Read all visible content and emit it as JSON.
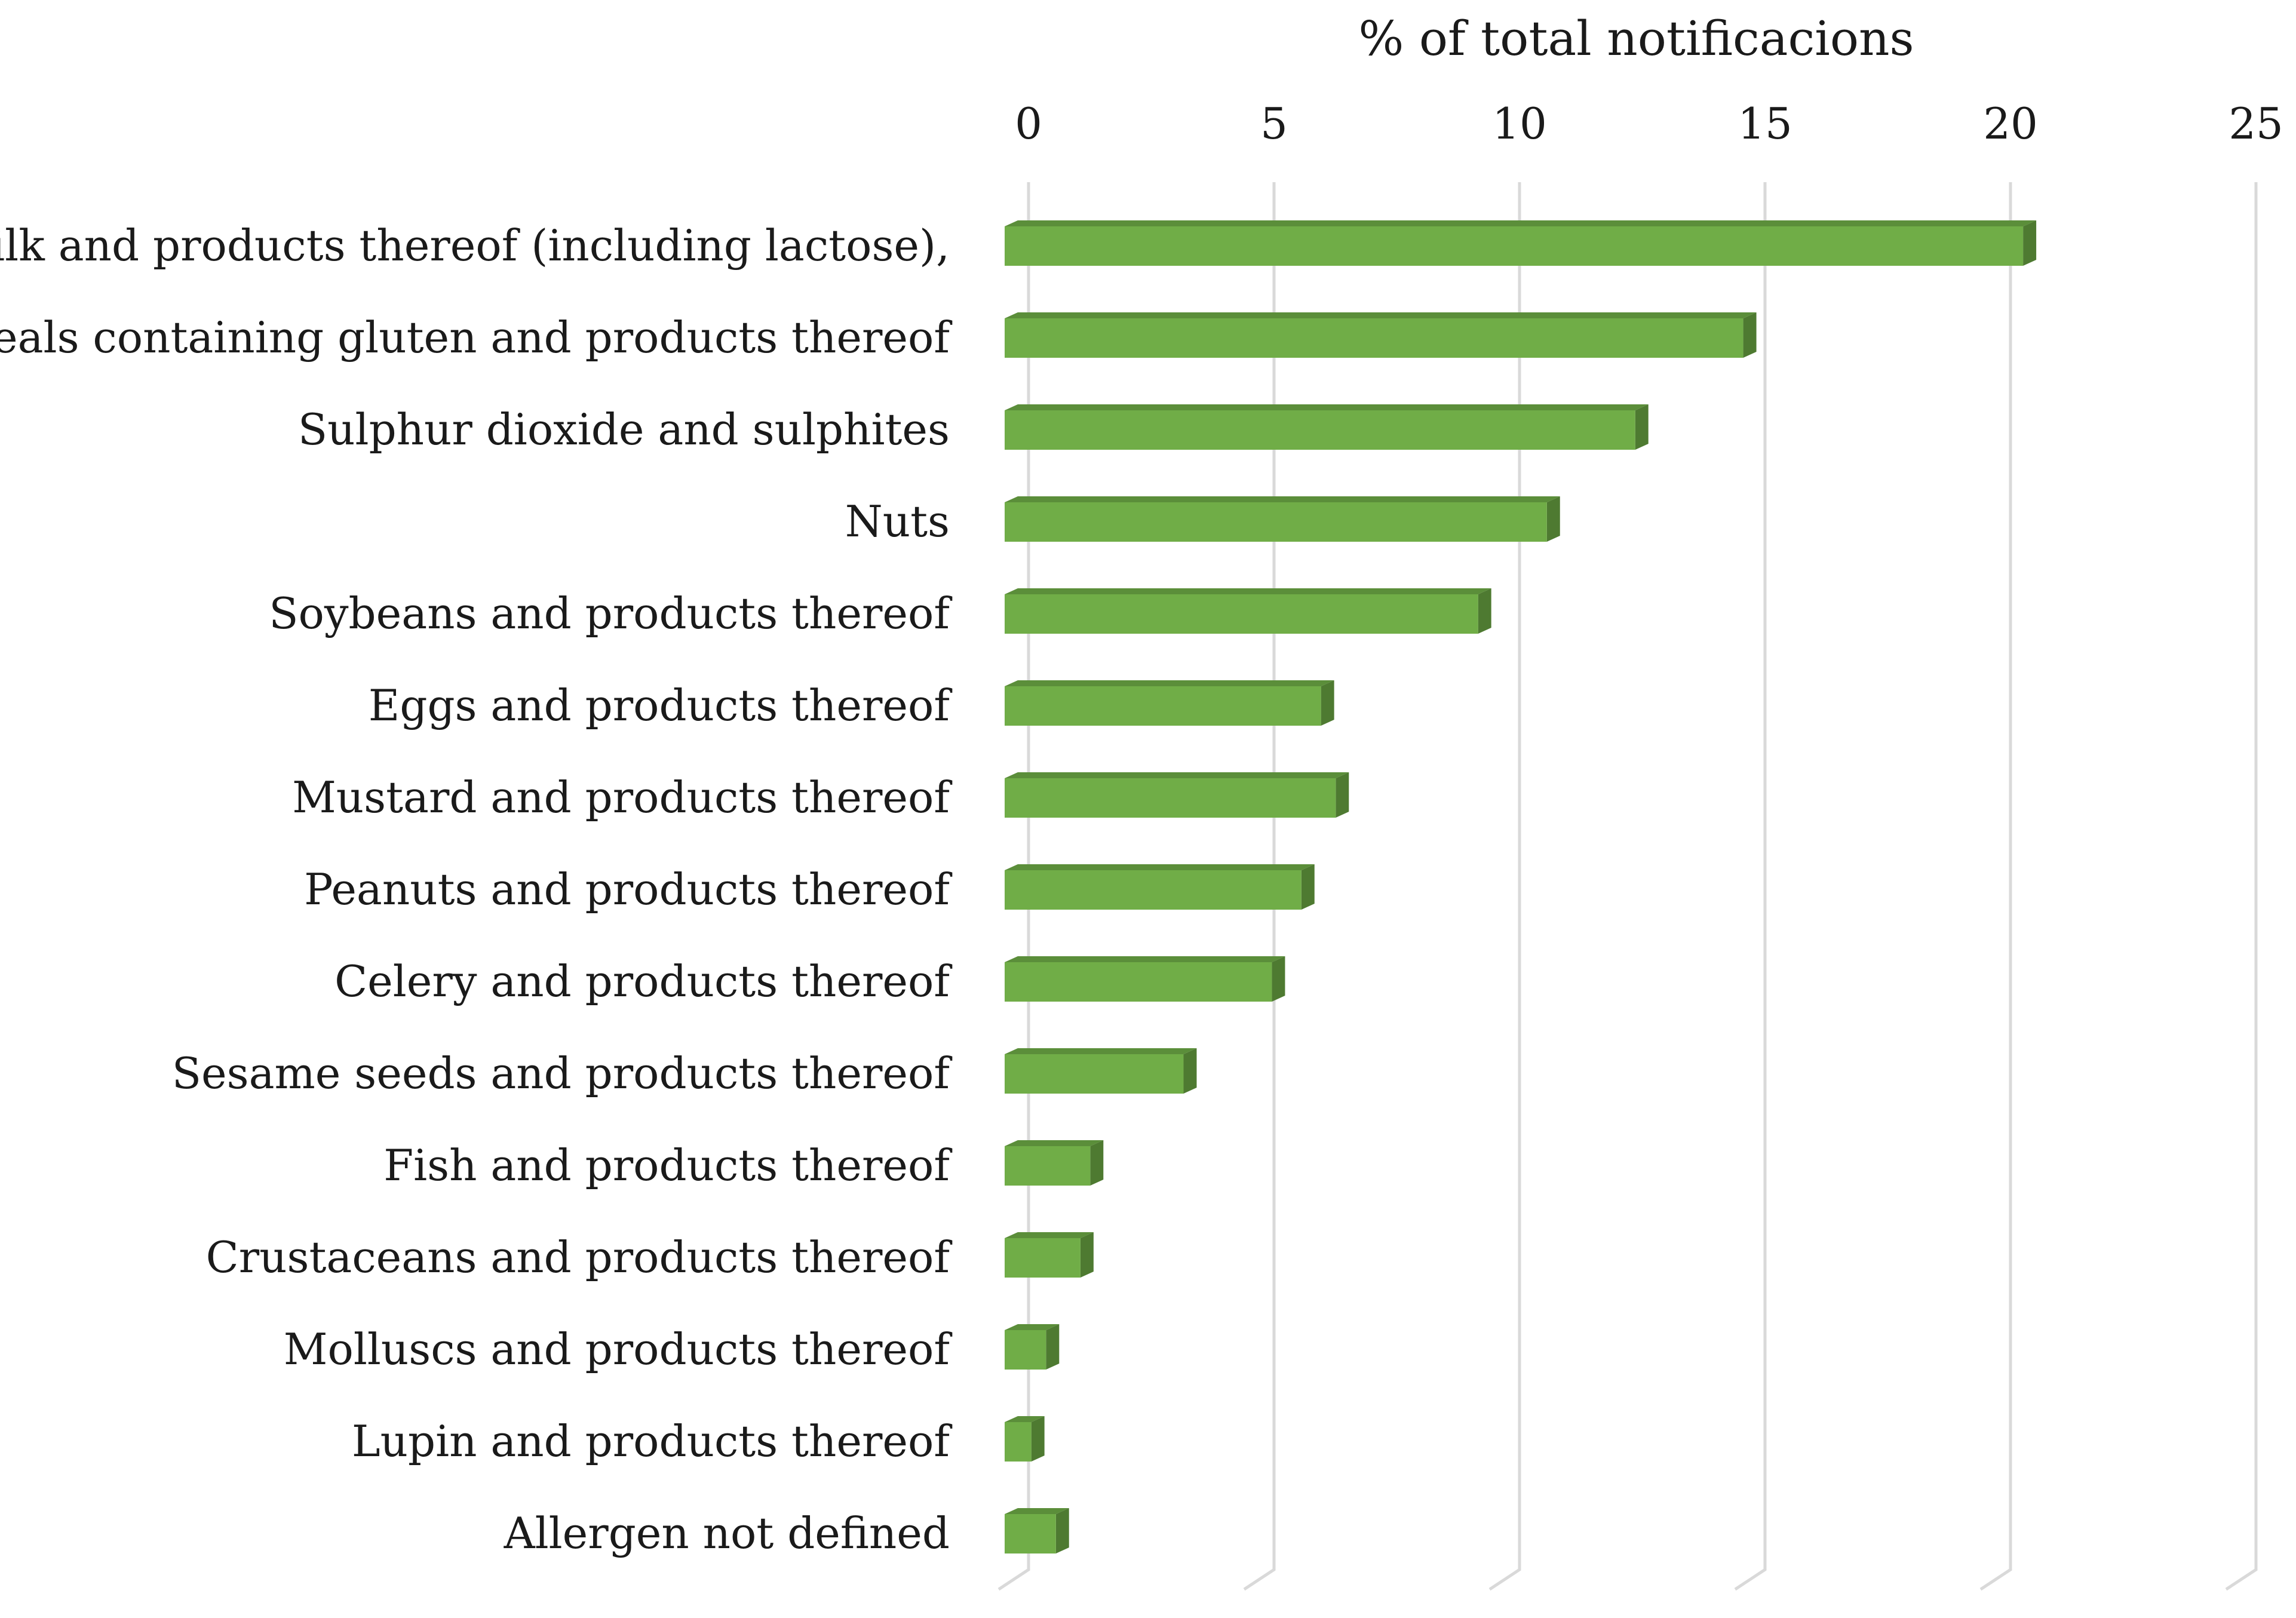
{
  "chart_data": {
    "type": "bar",
    "orientation": "horizontal",
    "style": "3d-bar",
    "title": "",
    "xlabel": "% of total notificacions",
    "ylabel": "",
    "xlim": [
      0,
      25
    ],
    "xticks": [
      0,
      5,
      10,
      15,
      20,
      25
    ],
    "xtick_labels": [
      "0",
      "5",
      "10",
      "15",
      "20",
      "25"
    ],
    "axis_position": "top",
    "grid": true,
    "legend": "none",
    "bar_color": "#70AD47",
    "bar_top_color": "#5B8E3A",
    "bar_side_color": "#4E7A31",
    "grid_color": "#D9D9D9",
    "categories": [
      "Milk and products thereof (including lactose),",
      "Cereals containing gluten and products thereof",
      "Sulphur dioxide and sulphites",
      "Nuts",
      "Soybeans and products thereof",
      "Eggs and products thereof",
      "Mustard and products thereof",
      "Peanuts and products thereof",
      "Celery and products thereof",
      "Sesame seeds and products thereof",
      "Fish and products thereof",
      "Crustaceans and products thereof",
      "Molluscs and products thereof",
      "Lupin and products thereof",
      "Allergen not defined"
    ],
    "values": [
      20.5,
      14.8,
      12.6,
      10.8,
      9.4,
      6.2,
      6.5,
      5.8,
      5.2,
      3.4,
      1.5,
      1.3,
      0.6,
      0.3,
      0.8
    ]
  }
}
